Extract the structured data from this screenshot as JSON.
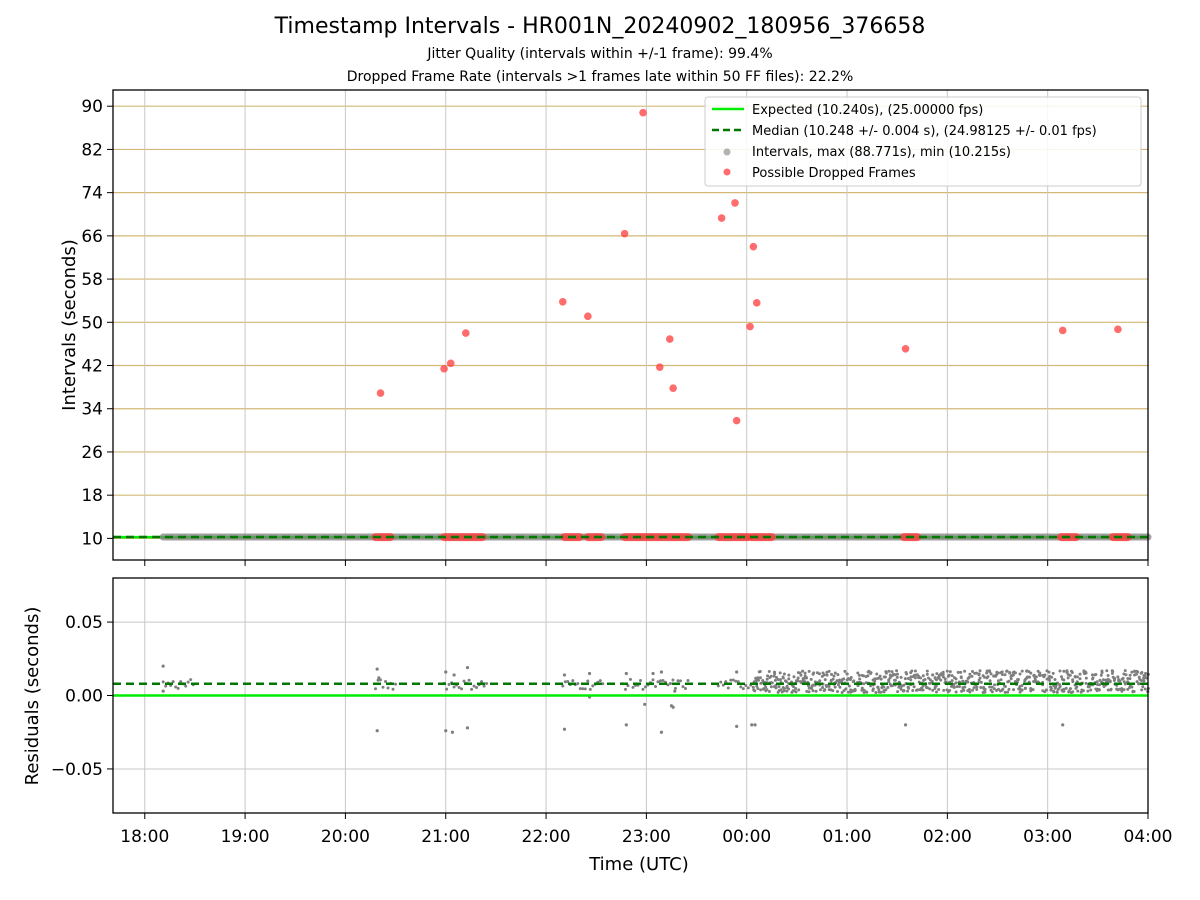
{
  "header": {
    "title": "Timestamp Intervals - HR001N_20240902_180956_376658",
    "subtitle1": "Jitter Quality (intervals within +/-1 frame): 99.4%",
    "subtitle2": "Dropped Frame Rate (intervals >1 frames late within 50 FF files): 22.2%"
  },
  "colors": {
    "expected": "#00ee00",
    "median": "#007700",
    "intervals": "#7f7f7f",
    "dropped": "#ff3b3b",
    "hgrid_top": "#d4b877",
    "grid": "#c8c8c8"
  },
  "chart_data": [
    {
      "type": "scatter",
      "title": "Timestamp Intervals - HR001N_20240902_180956_376658",
      "xlabel": "",
      "ylabel": "Intervals (seconds)",
      "xlim": [
        "17:41",
        "04:00"
      ],
      "ylim": [
        6.0,
        93.0
      ],
      "yticks": [
        10,
        18,
        26,
        34,
        42,
        50,
        58,
        66,
        74,
        82,
        90
      ],
      "xticks": [
        "18:00",
        "19:00",
        "20:00",
        "21:00",
        "22:00",
        "23:00",
        "00:00",
        "01:00",
        "02:00",
        "03:00",
        "04:00"
      ],
      "grid": true,
      "legend_position": "top-right",
      "legend": [
        "Expected (10.240s), (25.00000 fps)",
        "Median (10.248 +/- 0.004 s), (24.98125 +/- 0.01 fps)",
        "Intervals, max (88.771s), min (10.215s)",
        "Possible Dropped Frames"
      ],
      "expected_interval": 10.24,
      "median_interval": 10.248,
      "intervals_line": {
        "x_start": "18:11",
        "x_end": "04:00",
        "y": 10.248
      },
      "dropped_frames": [
        {
          "x": "20:21",
          "y": 36.9
        },
        {
          "x": "20:59",
          "y": 41.4
        },
        {
          "x": "21:03",
          "y": 42.4
        },
        {
          "x": "21:12",
          "y": 48.0
        },
        {
          "x": "22:10",
          "y": 53.8
        },
        {
          "x": "22:25",
          "y": 51.1
        },
        {
          "x": "22:47",
          "y": 66.4
        },
        {
          "x": "22:58",
          "y": 88.8
        },
        {
          "x": "23:08",
          "y": 41.7
        },
        {
          "x": "23:14",
          "y": 46.9
        },
        {
          "x": "23:16",
          "y": 37.8
        },
        {
          "x": "23:45",
          "y": 69.3
        },
        {
          "x": "23:53",
          "y": 72.1
        },
        {
          "x": "23:54",
          "y": 31.8
        },
        {
          "x": "00:02",
          "y": 49.2
        },
        {
          "x": "00:04",
          "y": 64.0
        },
        {
          "x": "00:06",
          "y": 53.6
        },
        {
          "x": "01:35",
          "y": 45.1
        },
        {
          "x": "03:09",
          "y": 48.5
        },
        {
          "x": "03:42",
          "y": 48.7
        }
      ],
      "dropped_at_baseline": [
        [
          "20:18",
          "20:27"
        ],
        [
          "20:59",
          "21:22"
        ],
        [
          "22:11",
          "22:20"
        ],
        [
          "22:25",
          "22:33"
        ],
        [
          "22:47",
          "23:25"
        ],
        [
          "23:43",
          "00:01"
        ],
        [
          "00:03",
          "00:15"
        ],
        [
          "01:34",
          "01:42"
        ],
        [
          "03:08",
          "03:17"
        ],
        [
          "03:39",
          "03:48"
        ]
      ]
    },
    {
      "type": "scatter",
      "xlabel": "Time (UTC)",
      "ylabel": "Residuals (seconds)",
      "xlim": [
        "17:41",
        "04:00"
      ],
      "ylim": [
        -0.08,
        0.08
      ],
      "yticks": [
        -0.05,
        0.0,
        0.05
      ],
      "ytick_labels": [
        "−0.05",
        "0.00",
        "0.05"
      ],
      "xticks": [
        "18:00",
        "19:00",
        "20:00",
        "21:00",
        "22:00",
        "23:00",
        "00:00",
        "01:00",
        "02:00",
        "03:00",
        "04:00"
      ],
      "grid": true,
      "expected_residual": 0.0,
      "median_residual": 0.008,
      "dense_band": {
        "x_start": "00:04",
        "x_end": "04:00",
        "y_low": 0.002,
        "y_high": 0.017
      },
      "residual_points": [
        {
          "x": "18:11",
          "y": 0.02
        },
        {
          "x": "18:11",
          "y": 0.003
        },
        {
          "x": "20:19",
          "y": 0.018
        },
        {
          "x": "20:19",
          "y": -0.024
        },
        {
          "x": "20:20",
          "y": 0.012
        },
        {
          "x": "21:00",
          "y": 0.016
        },
        {
          "x": "21:00",
          "y": -0.024
        },
        {
          "x": "21:04",
          "y": -0.025
        },
        {
          "x": "21:05",
          "y": 0.014
        },
        {
          "x": "21:13",
          "y": 0.019
        },
        {
          "x": "21:13",
          "y": -0.022
        },
        {
          "x": "22:11",
          "y": 0.014
        },
        {
          "x": "22:11",
          "y": -0.023
        },
        {
          "x": "22:26",
          "y": 0.015
        },
        {
          "x": "22:26",
          "y": -0.001
        },
        {
          "x": "22:48",
          "y": 0.015
        },
        {
          "x": "22:48",
          "y": -0.02
        },
        {
          "x": "22:59",
          "y": -0.006
        },
        {
          "x": "23:04",
          "y": 0.015
        },
        {
          "x": "23:09",
          "y": 0.016
        },
        {
          "x": "23:09",
          "y": -0.025
        },
        {
          "x": "23:15",
          "y": -0.007
        },
        {
          "x": "23:16",
          "y": -0.008
        },
        {
          "x": "23:17",
          "y": 0.003
        },
        {
          "x": "23:54",
          "y": 0.016
        },
        {
          "x": "23:54",
          "y": -0.021
        },
        {
          "x": "00:03",
          "y": -0.02
        },
        {
          "x": "00:05",
          "y": -0.02
        },
        {
          "x": "01:35",
          "y": -0.02
        },
        {
          "x": "03:09",
          "y": -0.02
        }
      ]
    }
  ]
}
